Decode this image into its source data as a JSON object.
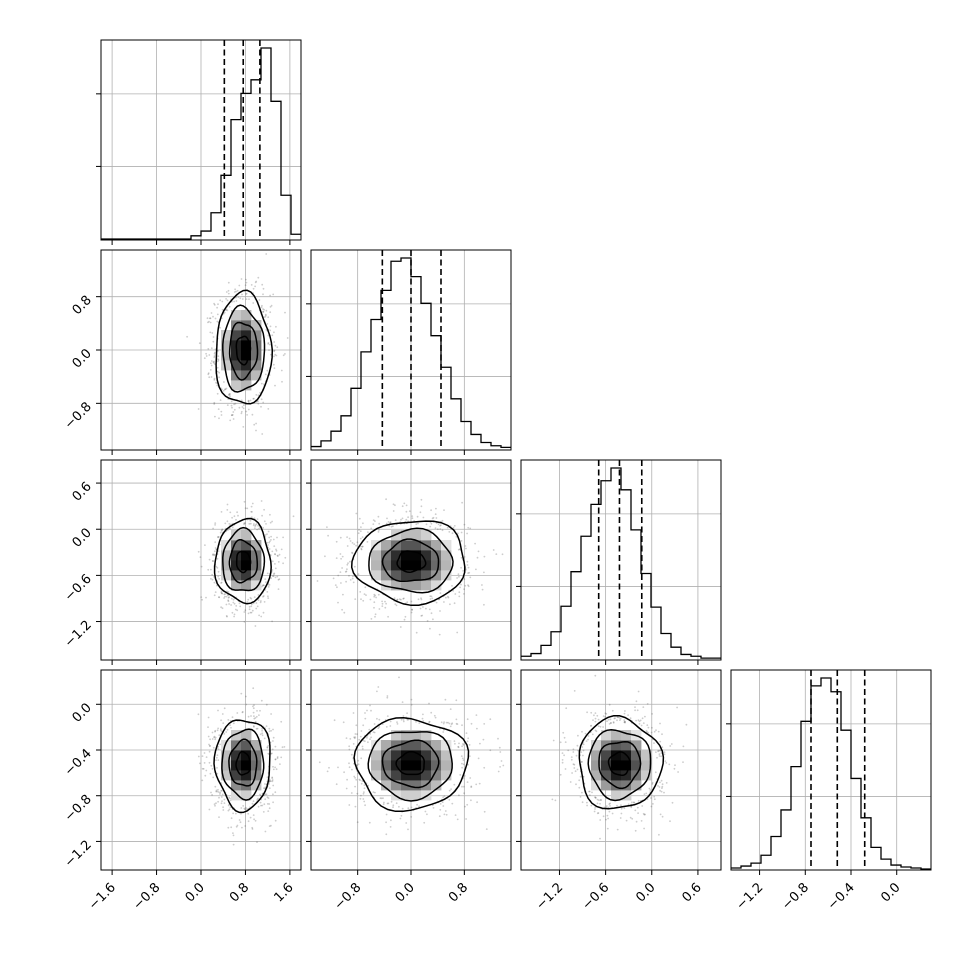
{
  "chart_data": {
    "type": "corner",
    "n_params": 4,
    "grid": true,
    "colors": {
      "hist": "#000000",
      "grid": "#b0b0b0",
      "points": "#4d4d4d",
      "frame": "#000000"
    },
    "params": [
      {
        "index": 0,
        "range": [
          -1.8,
          1.8
        ],
        "ticks": [
          -1.6,
          -0.8,
          0.0,
          0.8,
          1.6
        ],
        "tick_labels": [
          "−1.6",
          "−0.8",
          "0.0",
          "0.8",
          "1.6"
        ],
        "quantiles": [
          0.42,
          0.76,
          1.06
        ],
        "mean": 0.76,
        "sd": 0.25
      },
      {
        "index": 1,
        "range": [
          -1.5,
          1.5
        ],
        "ticks": [
          -0.8,
          0.0,
          0.8
        ],
        "tick_labels": [
          "−0.8",
          "0.0",
          "0.8"
        ],
        "quantiles": [
          -0.43,
          0.0,
          0.45
        ],
        "mean": 0.0,
        "sd": 0.42
      },
      {
        "index": 2,
        "range": [
          -1.7,
          0.9
        ],
        "ticks": [
          -1.2,
          -0.6,
          0.0,
          0.6
        ],
        "tick_labels": [
          "−1.2",
          "−0.6",
          "0.0",
          "0.6"
        ],
        "quantiles": [
          -0.69,
          -0.42,
          -0.13
        ],
        "mean": -0.42,
        "sd": 0.27
      },
      {
        "index": 3,
        "range": [
          -1.45,
          0.3
        ],
        "ticks": [
          -1.2,
          -0.8,
          -0.4,
          0.0
        ],
        "tick_labels": [
          "−1.2",
          "−0.8",
          "−0.4",
          "0.0"
        ],
        "quantiles": [
          -0.75,
          -0.52,
          -0.28
        ],
        "mean": -0.52,
        "sd": 0.2
      }
    ],
    "histograms": [
      {
        "param": 0,
        "bins": 20,
        "counts": [
          0,
          0,
          0,
          0,
          0,
          0,
          0,
          0,
          0,
          4,
          10,
          33,
          80,
          150,
          183,
          200,
          240,
          173,
          55,
          6
        ]
      },
      {
        "param": 1,
        "bins": 20,
        "counts": [
          3,
          10,
          22,
          41,
          75,
          120,
          160,
          196,
          232,
          236,
          213,
          180,
          140,
          101,
          62,
          34,
          18,
          8,
          4,
          2
        ]
      },
      {
        "param": 2,
        "bins": 20,
        "counts": [
          3,
          6,
          15,
          30,
          58,
          96,
          135,
          170,
          196,
          210,
          186,
          142,
          94,
          57,
          28,
          13,
          5,
          3,
          1,
          1
        ]
      },
      {
        "param": 3,
        "bins": 20,
        "counts": [
          1,
          3,
          6,
          14,
          33,
          60,
          104,
          150,
          186,
          194,
          180,
          141,
          92,
          52,
          22,
          10,
          4,
          2,
          1,
          0
        ]
      }
    ],
    "pairs": [
      {
        "x": 0,
        "y": 1,
        "cx": 0.76,
        "cy": 0.0,
        "sx": 0.25,
        "sy": 0.42
      },
      {
        "x": 0,
        "y": 2,
        "cx": 0.76,
        "cy": -0.42,
        "sx": 0.25,
        "sy": 0.27
      },
      {
        "x": 1,
        "y": 2,
        "cx": 0.0,
        "cy": -0.42,
        "sx": 0.42,
        "sy": 0.27
      },
      {
        "x": 0,
        "y": 3,
        "cx": 0.76,
        "cy": -0.52,
        "sx": 0.25,
        "sy": 0.2
      },
      {
        "x": 1,
        "y": 3,
        "cx": 0.0,
        "cy": -0.52,
        "sx": 0.42,
        "sy": 0.2
      },
      {
        "x": 2,
        "y": 3,
        "cx": -0.42,
        "cy": -0.52,
        "sx": 0.27,
        "sy": 0.2
      }
    ],
    "contour_levels_sigma": [
      0.5,
      1.0,
      1.5,
      2.0
    ]
  }
}
